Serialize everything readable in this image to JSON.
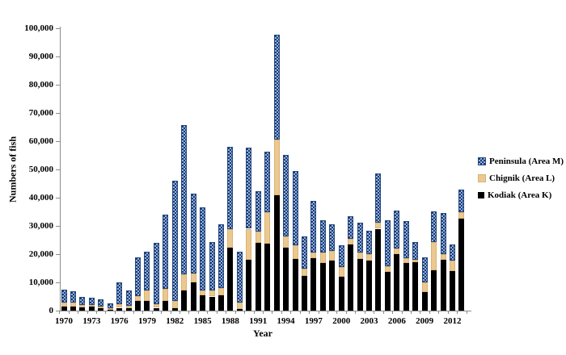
{
  "chart_data": {
    "type": "bar",
    "stacked": true,
    "title": "",
    "xlabel": "Year",
    "ylabel": "Numbers of fish",
    "ylim": [
      0,
      100000
    ],
    "y_tick_step": 10000,
    "y_tick_labels": [
      "0",
      "10,000",
      "20,000",
      "30,000",
      "40,000",
      "50,000",
      "60,000",
      "70,000",
      "80,000",
      "90,000",
      "100,000"
    ],
    "x_tick_labels": [
      "1970",
      "1973",
      "1976",
      "1979",
      "1982",
      "1985",
      "1988",
      "1991",
      "1994",
      "1997",
      "2000",
      "2003",
      "2006",
      "2009",
      "2012"
    ],
    "x_tick_years": [
      1970,
      1973,
      1976,
      1979,
      1982,
      1985,
      1988,
      1991,
      1994,
      1997,
      2000,
      2003,
      2006,
      2009,
      2012
    ],
    "categories": [
      1970,
      1971,
      1972,
      1973,
      1974,
      1975,
      1976,
      1977,
      1978,
      1979,
      1980,
      1981,
      1982,
      1983,
      1984,
      1985,
      1986,
      1987,
      1988,
      1989,
      1990,
      1991,
      1992,
      1993,
      1994,
      1995,
      1996,
      1997,
      1998,
      1999,
      2000,
      2001,
      2002,
      2003,
      2004,
      2005,
      2006,
      2007,
      2008,
      2009,
      2010,
      2011,
      2012,
      2013
    ],
    "series": [
      {
        "name": "Kodiak (Area K)",
        "color": "#000000",
        "pattern": "solid",
        "values": [
          1500,
          1500,
          1200,
          1300,
          800,
          300,
          1000,
          800,
          3500,
          3300,
          1000,
          3500,
          800,
          7200,
          10000,
          5500,
          5000,
          5500,
          22400,
          500,
          18100,
          24100,
          23800,
          41000,
          22400,
          18400,
          12400,
          18600,
          16900,
          17800,
          11900,
          23300,
          18400,
          17600,
          29000,
          13800,
          20000,
          16900,
          17100,
          6700,
          14300,
          18100,
          14000,
          32700
        ]
      },
      {
        "name": "Chignik (Area L)",
        "color": "#ecc891",
        "pattern": "solid",
        "values": [
          1500,
          1400,
          800,
          700,
          700,
          500,
          1200,
          800,
          1700,
          3800,
          1400,
          4100,
          2700,
          5700,
          3200,
          1700,
          2200,
          2500,
          6600,
          2400,
          10900,
          4000,
          11000,
          19500,
          3800,
          4700,
          2500,
          2100,
          3600,
          3400,
          3500,
          2200,
          2100,
          2400,
          2100,
          1900,
          1900,
          1700,
          1000,
          3300,
          10000,
          1900,
          3600,
          2200
        ]
      },
      {
        "name": "Peninsula (Area M)",
        "color": "#1c3a6e",
        "pattern": "light-blue-dot-check",
        "values": [
          4500,
          4100,
          3000,
          2500,
          2500,
          1800,
          7800,
          5600,
          13800,
          13900,
          21600,
          26400,
          42500,
          52800,
          28200,
          29500,
          17100,
          22500,
          29000,
          18000,
          28600,
          14300,
          21400,
          37100,
          29000,
          26400,
          11300,
          18300,
          11400,
          9500,
          7700,
          7800,
          10600,
          8300,
          17500,
          16200,
          13600,
          13000,
          6200,
          9000,
          10900,
          14600,
          5700,
          8000
        ]
      }
    ],
    "legend_position": "right",
    "grid": false
  },
  "legend": {
    "items": [
      {
        "label": "Peninsula (Area M)",
        "swatch": "peninsula"
      },
      {
        "label": "Chignik (Area L)",
        "swatch": "chignik"
      },
      {
        "label": "Kodiak (Area K)",
        "swatch": "kodiak"
      }
    ]
  },
  "colors": {
    "peninsula_base": "#1c3a6e",
    "peninsula_dot": "#92b1e0",
    "chignik": "#ecc891",
    "kodiak": "#000000",
    "axis": "#8c8c8c",
    "text": "#000000",
    "background": "#ffffff"
  }
}
